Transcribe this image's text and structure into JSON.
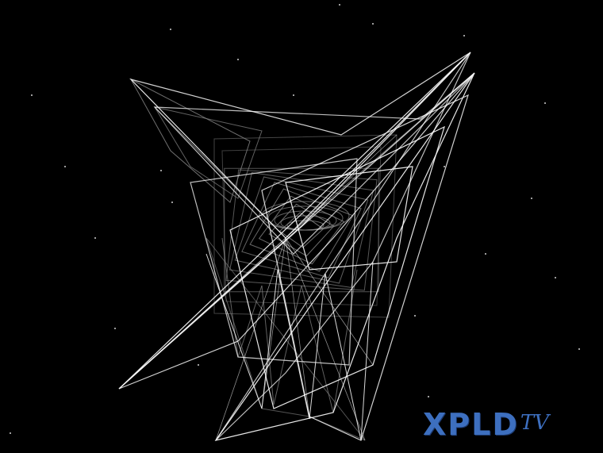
{
  "screen": {
    "name": "wireframe-visualizer",
    "background_color": "#000000",
    "line_color_bright": "#ffffff",
    "line_color_dim": "#8a8a8a",
    "star_color": "#cfcfcf"
  },
  "logo": {
    "main_text": "XPLD",
    "suffix_text": "TV",
    "color": "#3d6fbf"
  }
}
